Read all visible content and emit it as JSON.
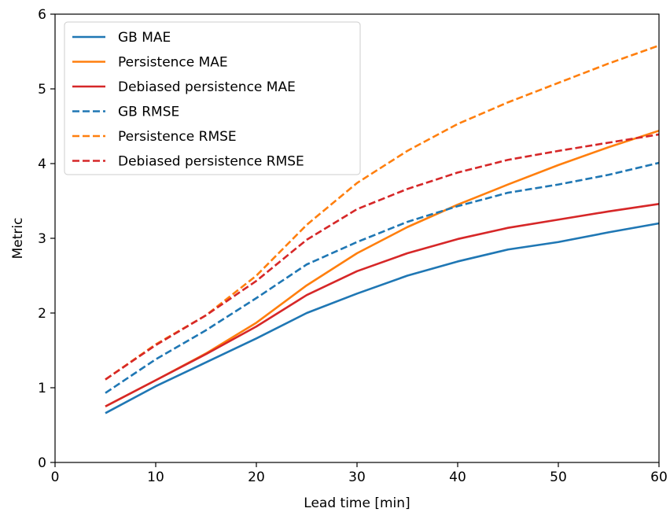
{
  "chart_data": {
    "type": "line",
    "title": "",
    "xlabel": "Lead time [min]",
    "ylabel": "Metric",
    "xlim": [
      0,
      60
    ],
    "ylim": [
      0,
      6
    ],
    "xticks": [
      0,
      10,
      20,
      30,
      40,
      50,
      60
    ],
    "yticks": [
      0,
      1,
      2,
      3,
      4,
      5,
      6
    ],
    "grid": false,
    "legend_position": "top-left",
    "x": [
      5,
      10,
      15,
      20,
      25,
      30,
      35,
      40,
      45,
      50,
      55,
      60
    ],
    "series": [
      {
        "name": "GB MAE",
        "color": "#1f77b4",
        "dash": "solid",
        "values": [
          0.66,
          1.02,
          1.34,
          1.66,
          2.0,
          2.26,
          2.5,
          2.69,
          2.85,
          2.95,
          3.08,
          3.2
        ]
      },
      {
        "name": "Persistence MAE",
        "color": "#ff7f0e",
        "dash": "solid",
        "values": [
          0.75,
          1.1,
          1.46,
          1.87,
          2.37,
          2.8,
          3.15,
          3.45,
          3.72,
          3.98,
          4.22,
          4.44
        ]
      },
      {
        "name": "Debiased persistence MAE",
        "color": "#d62728",
        "dash": "solid",
        "values": [
          0.75,
          1.1,
          1.45,
          1.82,
          2.24,
          2.56,
          2.8,
          2.99,
          3.14,
          3.25,
          3.36,
          3.46
        ]
      },
      {
        "name": "GB RMSE",
        "color": "#1f77b4",
        "dash": "dashed",
        "values": [
          0.93,
          1.38,
          1.77,
          2.2,
          2.65,
          2.95,
          3.22,
          3.43,
          3.61,
          3.72,
          3.85,
          4.01
        ]
      },
      {
        "name": "Persistence RMSE",
        "color": "#ff7f0e",
        "dash": "dashed",
        "values": [
          1.11,
          1.58,
          1.97,
          2.5,
          3.18,
          3.74,
          4.17,
          4.53,
          4.82,
          5.08,
          5.34,
          5.58
        ]
      },
      {
        "name": "Debiased persistence RMSE",
        "color": "#d62728",
        "dash": "dashed",
        "values": [
          1.11,
          1.57,
          1.97,
          2.43,
          2.98,
          3.39,
          3.66,
          3.88,
          4.05,
          4.17,
          4.28,
          4.39
        ]
      }
    ]
  }
}
